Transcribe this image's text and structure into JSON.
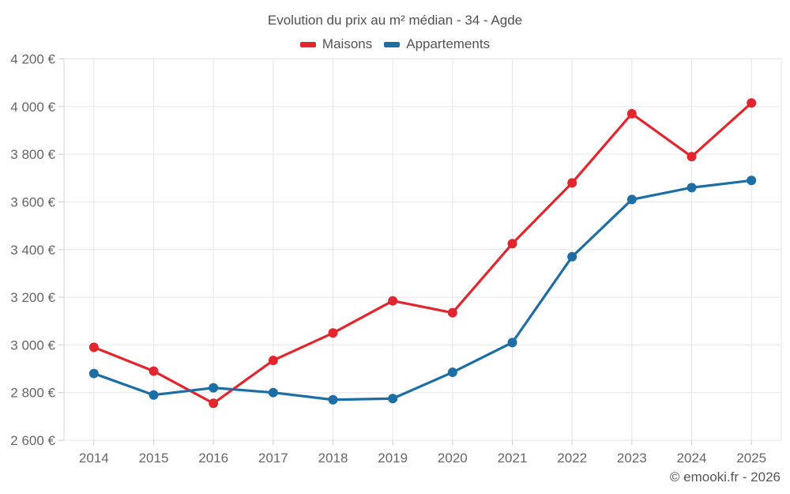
{
  "page": {
    "footer": "© emooki.fr - 2026"
  },
  "colors": {
    "maisons": "#e1262d",
    "appartements": "#1c6ea4",
    "gridline": "#e6e6e6",
    "axis": "#d6d6d6",
    "tick": "#cccccc",
    "tick_label": "#666666",
    "title_text": "#4f4f4f"
  },
  "chart_data": {
    "type": "line",
    "title": "Evolution du prix au m² médian - 34 - Agde",
    "categories": [
      "2014",
      "2015",
      "2016",
      "2017",
      "2018",
      "2019",
      "2020",
      "2021",
      "2022",
      "2023",
      "2024",
      "2025"
    ],
    "series": [
      {
        "name": "Maisons",
        "color": "#e1262d",
        "values": [
          2990,
          2890,
          2755,
          2935,
          3050,
          3185,
          3135,
          3425,
          3680,
          3970,
          3790,
          4015
        ]
      },
      {
        "name": "Appartements",
        "color": "#1c6ea4",
        "values": [
          2880,
          2790,
          2820,
          2800,
          2770,
          2775,
          2885,
          3010,
          3370,
          3610,
          3660,
          3690
        ]
      }
    ],
    "xlabel": "",
    "ylabel": "",
    "ylim": [
      2600,
      4200
    ],
    "ytick_step": 200,
    "ytick_format": "{value} €",
    "grid": true,
    "legend_position": "top",
    "marker_radius": 6,
    "line_width": 3.2
  }
}
